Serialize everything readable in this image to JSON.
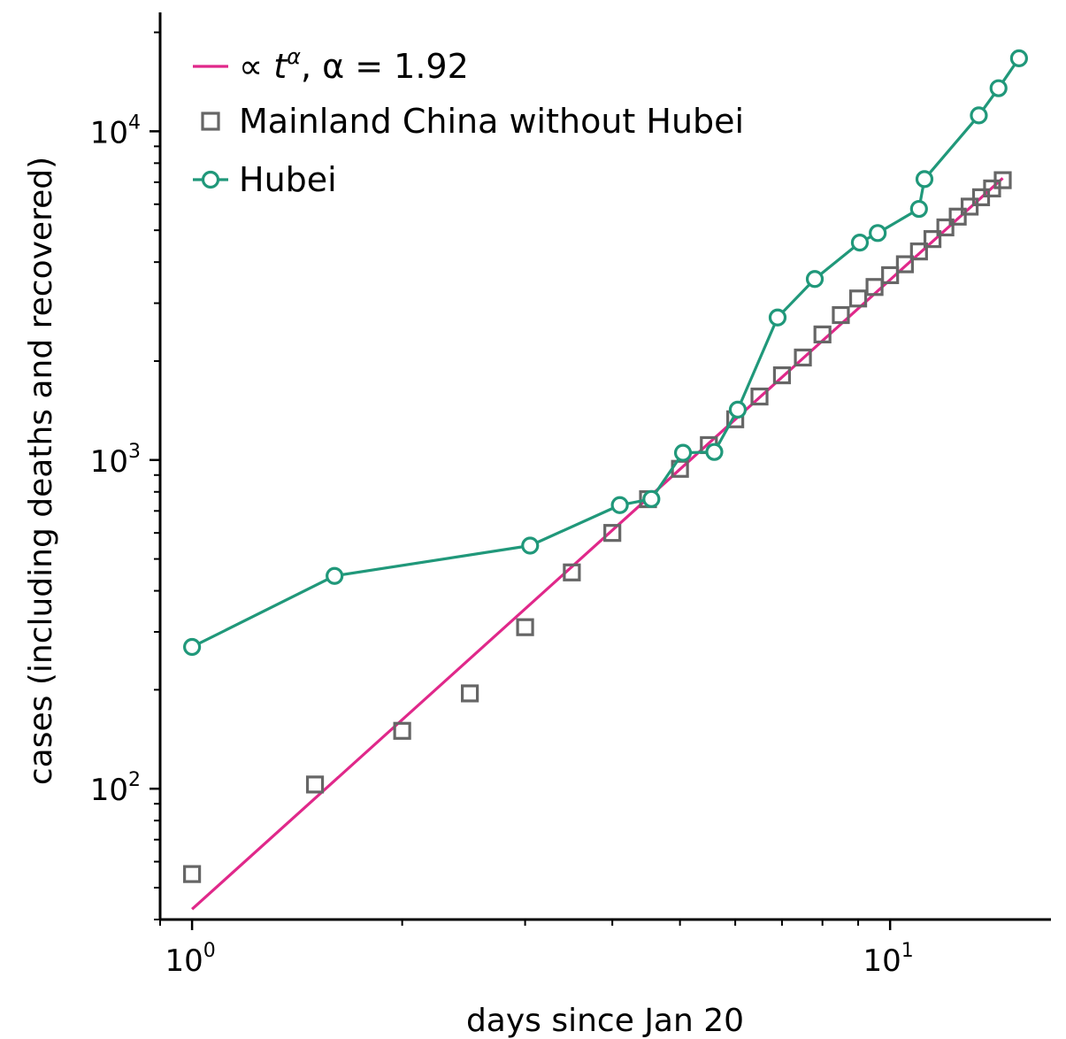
{
  "chart_data": {
    "type": "scatter",
    "x_scale": "log",
    "y_scale": "log",
    "xlabel": "days since Jan 20",
    "ylabel": "cases (including deaths and recovered)",
    "xlim": [
      0.9,
      17
    ],
    "ylim": [
      40,
      23000
    ],
    "x_ticks": [
      {
        "value": 1,
        "base": "10",
        "exp": "0"
      },
      {
        "value": 10,
        "base": "10",
        "exp": "1"
      }
    ],
    "y_ticks": [
      {
        "value": 100,
        "base": "10",
        "exp": "2"
      },
      {
        "value": 1000,
        "base": "10",
        "exp": "3"
      },
      {
        "value": 10000,
        "base": "10",
        "exp": "4"
      }
    ],
    "grid": false,
    "legend_position": "top-left",
    "series": [
      {
        "name": "∝ t^α, α = 1.92",
        "legend": {
          "prefix": "∝ ",
          "t": "t",
          "sup": "α",
          "rest": ",  α = 1.92"
        },
        "kind": "line",
        "color": "#e0288a",
        "x": [
          1,
          14.5
        ],
        "y": [
          43,
          7200
        ]
      },
      {
        "name": "Mainland China without Hubei",
        "kind": "markers",
        "marker": "square",
        "color": "#666666",
        "x": [
          1,
          1.5,
          2,
          2.5,
          3,
          3.5,
          4,
          4.5,
          5,
          5.5,
          6,
          6.5,
          7,
          7.5,
          8,
          8.5,
          9,
          9.5,
          10,
          10.5,
          11,
          11.5,
          12,
          12.5,
          13,
          13.5,
          14,
          14.5
        ],
        "y": [
          55,
          103,
          150,
          195,
          310,
          455,
          600,
          760,
          940,
          1110,
          1330,
          1560,
          1810,
          2050,
          2410,
          2760,
          3100,
          3360,
          3650,
          3940,
          4310,
          4700,
          5100,
          5500,
          5900,
          6300,
          6700,
          7100
        ]
      },
      {
        "name": "Hubei",
        "kind": "line-markers",
        "marker": "circle",
        "color": "#20987a",
        "x": [
          1,
          1.6,
          3.05,
          4.1,
          4.55,
          5.05,
          5.6,
          6.05,
          6.9,
          7.8,
          9.05,
          9.6,
          11.0,
          11.2,
          13.4,
          14.3,
          15.3
        ],
        "y": [
          270,
          444,
          549,
          729,
          761,
          1052,
          1058,
          1423,
          2714,
          3554,
          4586,
          4903,
          5806,
          7153,
          11177,
          13522,
          16678
        ]
      }
    ]
  }
}
